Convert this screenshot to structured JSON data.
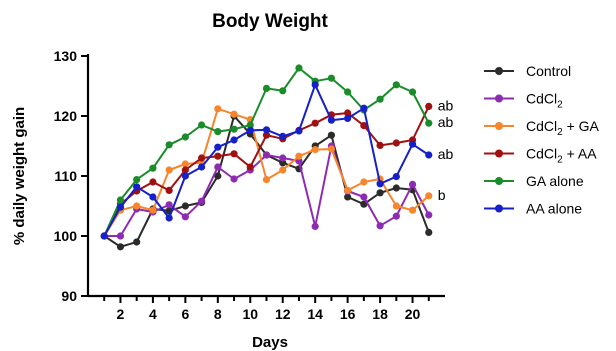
{
  "chart_data": {
    "type": "line",
    "title": "Body Weight",
    "xlabel": "Days",
    "ylabel": "% daily weight gain",
    "xlim": [
      0,
      22
    ],
    "ylim": [
      90,
      130
    ],
    "x": [
      1,
      2,
      3,
      4,
      5,
      6,
      7,
      8,
      9,
      10,
      11,
      12,
      13,
      14,
      15,
      16,
      17,
      18,
      19,
      20,
      21
    ],
    "x_ticks": [
      2,
      4,
      6,
      8,
      10,
      12,
      14,
      16,
      18,
      20
    ],
    "y_ticks": [
      90,
      100,
      110,
      120,
      130
    ],
    "grid": false,
    "legend_position": "right",
    "series": [
      {
        "name": "Control",
        "color": "#2b2b2b",
        "values": [
          100,
          98.2,
          99.0,
          104.5,
          104.2,
          105.0,
          105.6,
          110.0,
          120.0,
          117.0,
          113.5,
          112.2,
          111.2,
          115.0,
          116.8,
          106.5,
          105.3,
          107.2,
          108.0,
          107.7,
          100.6
        ]
      },
      {
        "name": "CdCl2",
        "name_main": "CdCl",
        "name_sub": "2",
        "name_tail": "",
        "color": "#8e2bb3",
        "values": [
          100,
          100.0,
          104.5,
          104.0,
          105.2,
          103.2,
          105.8,
          111.5,
          109.5,
          111.0,
          113.5,
          113.0,
          112.5,
          101.6,
          115.0,
          107.5,
          106.5,
          101.7,
          103.3,
          108.6,
          103.5
        ]
      },
      {
        "name": "CdCl2 + GA",
        "name_main": "CdCl",
        "name_sub": "2",
        "name_tail": " + GA",
        "color": "#f7852b",
        "values": [
          100,
          104.3,
          105.0,
          104.3,
          111.0,
          112.0,
          112.2,
          121.2,
          120.3,
          119.4,
          109.4,
          111.0,
          113.3,
          114.4,
          114.5,
          107.6,
          109.0,
          109.5,
          105.0,
          104.3,
          106.7
        ]
      },
      {
        "name": "CdCl2 + AA",
        "name_main": "CdCl",
        "name_sub": "2",
        "name_tail": " + AA",
        "color": "#a01010",
        "values": [
          100,
          105.3,
          107.5,
          109.0,
          107.6,
          111.0,
          113.0,
          113.3,
          113.7,
          111.5,
          116.8,
          116.2,
          117.6,
          118.8,
          120.2,
          120.5,
          118.4,
          115.1,
          115.5,
          116.0,
          121.6
        ]
      },
      {
        "name": "GA alone",
        "color": "#1a8c2a",
        "values": [
          100,
          106.0,
          109.4,
          111.3,
          115.2,
          116.5,
          118.5,
          117.4,
          117.8,
          118.5,
          124.6,
          124.2,
          128.0,
          125.8,
          126.3,
          124.0,
          121.0,
          122.8,
          125.2,
          124.0,
          118.8
        ]
      },
      {
        "name": "AA alone",
        "color": "#1520c8",
        "values": [
          100,
          104.8,
          108.2,
          106.5,
          103.0,
          110.0,
          111.5,
          114.8,
          116.0,
          117.6,
          117.7,
          116.6,
          117.5,
          125.2,
          119.3,
          119.6,
          121.3,
          108.7,
          109.9,
          115.3,
          113.5
        ]
      }
    ],
    "annotations": [
      {
        "text": "ab",
        "x": 21,
        "y": 121.6
      },
      {
        "text": "ab",
        "x": 21,
        "y": 118.8
      },
      {
        "text": "ab",
        "x": 21,
        "y": 113.5
      },
      {
        "text": "b",
        "x": 21,
        "y": 106.7
      }
    ]
  }
}
